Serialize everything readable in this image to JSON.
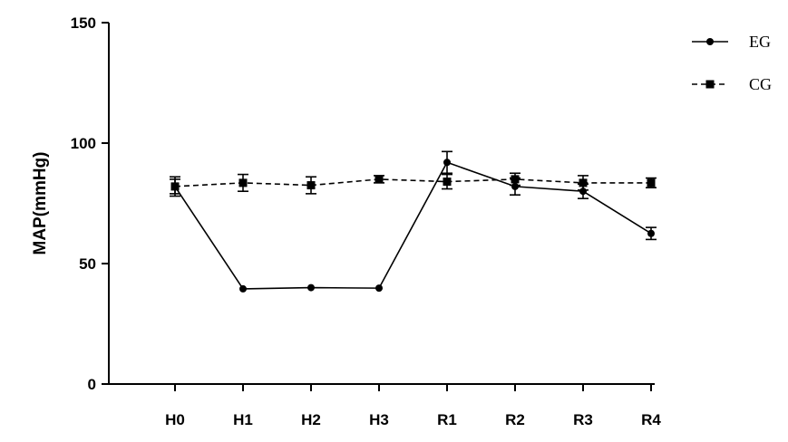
{
  "chart_data": {
    "type": "line",
    "title": "",
    "xlabel": "",
    "ylabel": "MAP(mmHg)",
    "categories": [
      "H0",
      "H1",
      "H2",
      "H3",
      "R1",
      "R2",
      "R3",
      "R4"
    ],
    "ylim": [
      0,
      150
    ],
    "yticks": [
      "0",
      "50",
      "100",
      "150"
    ],
    "grid": false,
    "legend_position": "top-right",
    "series": [
      {
        "name": "EG",
        "line_style": "solid",
        "marker": "circle",
        "color": "#000000",
        "values": [
          82,
          39.5,
          40,
          39.8,
          92,
          82,
          80,
          62.5
        ],
        "errors": [
          3,
          0,
          0,
          0,
          4.5,
          3.5,
          3,
          2.5
        ]
      },
      {
        "name": "CG",
        "line_style": "dashed",
        "marker": "square",
        "color": "#000000",
        "values": [
          82,
          83.5,
          82.5,
          85,
          84,
          85,
          83.5,
          83.5
        ],
        "errors": [
          4,
          3.5,
          3.5,
          1.5,
          3,
          2.5,
          3,
          2
        ]
      }
    ]
  }
}
